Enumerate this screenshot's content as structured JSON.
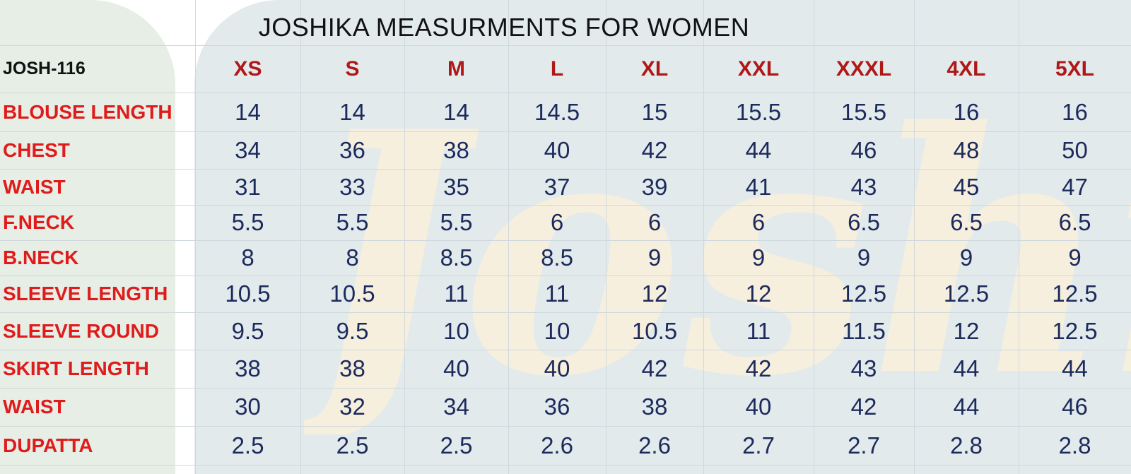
{
  "title": "JOSHIKA MEASURMENTS FOR WOMEN",
  "product_code": "JOSH-116",
  "watermark": "Joshika",
  "colors": {
    "header": "#b01818",
    "row_label": "#e01b1b",
    "value": "#1c2a5c",
    "title": "#111111"
  },
  "sizes": [
    "XS",
    "S",
    "M",
    "L",
    "XL",
    "XXL",
    "XXXL",
    "4XL",
    "5XL"
  ],
  "rows": [
    {
      "label": "BLOUSE LENGTH",
      "values": [
        "14",
        "14",
        "14",
        "14.5",
        "15",
        "15.5",
        "15.5",
        "16",
        "16"
      ]
    },
    {
      "label": "CHEST",
      "values": [
        "34",
        "36",
        "38",
        "40",
        "42",
        "44",
        "46",
        "48",
        "50"
      ]
    },
    {
      "label": "WAIST",
      "values": [
        "31",
        "33",
        "35",
        "37",
        "39",
        "41",
        "43",
        "45",
        "47"
      ]
    },
    {
      "label": "F.NECK",
      "values": [
        "5.5",
        "5.5",
        "5.5",
        "6",
        "6",
        "6",
        "6.5",
        "6.5",
        "6.5"
      ]
    },
    {
      "label": "B.NECK",
      "values": [
        "8",
        "8",
        "8.5",
        "8.5",
        "9",
        "9",
        "9",
        "9",
        "9"
      ]
    },
    {
      "label": "SLEEVE LENGTH",
      "values": [
        "10.5",
        "10.5",
        "11",
        "11",
        "12",
        "12",
        "12.5",
        "12.5",
        "12.5"
      ]
    },
    {
      "label": "SLEEVE ROUND",
      "values": [
        "9.5",
        "9.5",
        "10",
        "10",
        "10.5",
        "11",
        "11.5",
        "12",
        "12.5"
      ]
    },
    {
      "label": "SKIRT LENGTH",
      "values": [
        "38",
        "38",
        "40",
        "40",
        "42",
        "42",
        "43",
        "44",
        "44"
      ]
    },
    {
      "label": "WAIST",
      "values": [
        "30",
        "32",
        "34",
        "36",
        "38",
        "40",
        "42",
        "44",
        "46"
      ]
    },
    {
      "label": "DUPATTA",
      "values": [
        "2.5",
        "2.5",
        "2.5",
        "2.6",
        "2.6",
        "2.7",
        "2.7",
        "2.8",
        "2.8"
      ]
    }
  ]
}
